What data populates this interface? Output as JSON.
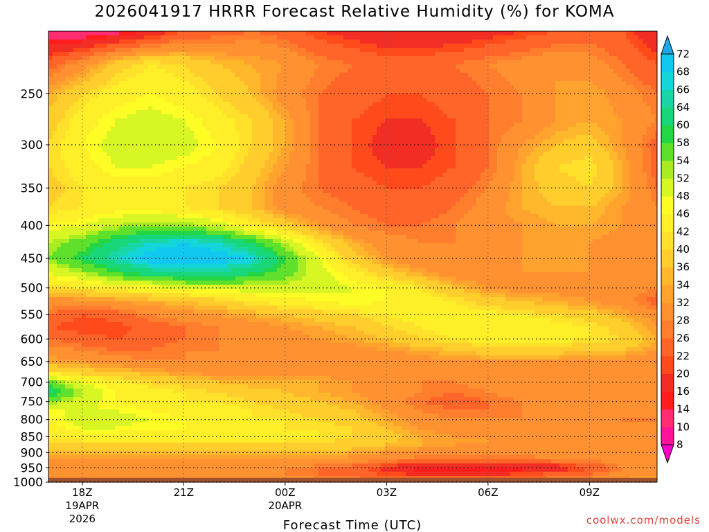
{
  "chart_data": {
    "type": "heatmap",
    "title": "2026041917 HRRR Forecast Relative Humidity (%) for KOMA",
    "xlabel": "Forecast Time (UTC)",
    "ylabel": "",
    "x_ticks": [
      {
        "hour": 18,
        "label": "18Z",
        "sub1": "19APR",
        "sub2": "2026"
      },
      {
        "hour": 21,
        "label": "21Z",
        "sub1": "",
        "sub2": ""
      },
      {
        "hour": 24,
        "label": "00Z",
        "sub1": "20APR",
        "sub2": ""
      },
      {
        "hour": 27,
        "label": "03Z",
        "sub1": "",
        "sub2": ""
      },
      {
        "hour": 30,
        "label": "06Z",
        "sub1": "",
        "sub2": ""
      },
      {
        "hour": 33,
        "label": "09Z",
        "sub1": "",
        "sub2": ""
      }
    ],
    "x_range_hours": [
      17,
      35
    ],
    "y_ticks_hpa": [
      250,
      300,
      350,
      400,
      450,
      500,
      550,
      600,
      650,
      700,
      750,
      800,
      850,
      900,
      950,
      1000
    ],
    "y_range_hpa": [
      200,
      1000
    ],
    "y_scale": "log",
    "grid": true,
    "colorbar_levels": [
      8,
      10,
      14,
      16,
      20,
      22,
      26,
      28,
      32,
      34,
      36,
      40,
      42,
      46,
      48,
      52,
      54,
      58,
      60,
      64,
      66,
      68,
      72
    ],
    "colorbar_colors": [
      "#ff00c8",
      "#ff1499",
      "#ff2c72",
      "#ff1c1c",
      "#f22d24",
      "#ff4a1c",
      "#ff6428",
      "#ff7e2e",
      "#ff9130",
      "#ffa22e",
      "#ffb82c",
      "#ffce2c",
      "#ffe02a",
      "#ffef28",
      "#fffc26",
      "#d8f524",
      "#a9ec22",
      "#5fe02a",
      "#22d646",
      "#18d67a",
      "#18d6a8",
      "#14d6da",
      "#10c8f0",
      "#1aa8e8"
    ],
    "hours": [
      17,
      18,
      19,
      20,
      21,
      22,
      23,
      24,
      25,
      26,
      27,
      28,
      29,
      30,
      31,
      32,
      33,
      34,
      35
    ],
    "levels_hpa": [
      200,
      225,
      250,
      275,
      300,
      325,
      350,
      375,
      400,
      425,
      450,
      475,
      500,
      525,
      550,
      575,
      600,
      625,
      650,
      675,
      700,
      725,
      750,
      775,
      800,
      825,
      850,
      875,
      900,
      925,
      950,
      975,
      1000
    ],
    "rh": [
      [
        10,
        10,
        12,
        16,
        22,
        24,
        26,
        24,
        20,
        18,
        16,
        16,
        16,
        18,
        20,
        22,
        24,
        22,
        16
      ],
      [
        24,
        30,
        38,
        42,
        40,
        36,
        34,
        32,
        28,
        26,
        24,
        24,
        26,
        28,
        30,
        32,
        30,
        26,
        22
      ],
      [
        34,
        40,
        44,
        46,
        44,
        40,
        36,
        30,
        26,
        24,
        22,
        22,
        24,
        26,
        28,
        32,
        34,
        30,
        26
      ],
      [
        38,
        44,
        48,
        50,
        48,
        44,
        40,
        34,
        26,
        22,
        20,
        20,
        22,
        26,
        28,
        32,
        34,
        32,
        28
      ],
      [
        40,
        46,
        50,
        52,
        50,
        46,
        40,
        34,
        26,
        22,
        18,
        18,
        22,
        26,
        32,
        36,
        38,
        32,
        24
      ],
      [
        40,
        44,
        48,
        48,
        46,
        44,
        38,
        32,
        26,
        22,
        20,
        20,
        22,
        26,
        34,
        40,
        42,
        34,
        24
      ],
      [
        38,
        42,
        44,
        44,
        42,
        40,
        36,
        30,
        26,
        24,
        22,
        22,
        24,
        28,
        34,
        38,
        40,
        34,
        26
      ],
      [
        40,
        42,
        44,
        44,
        42,
        40,
        36,
        30,
        28,
        26,
        24,
        24,
        26,
        30,
        34,
        36,
        36,
        32,
        28
      ],
      [
        46,
        48,
        52,
        54,
        54,
        50,
        44,
        38,
        32,
        28,
        26,
        26,
        28,
        30,
        32,
        34,
        34,
        32,
        30
      ],
      [
        52,
        56,
        62,
        66,
        68,
        66,
        60,
        52,
        42,
        34,
        30,
        28,
        28,
        30,
        32,
        32,
        32,
        30,
        30
      ],
      [
        54,
        60,
        66,
        70,
        70,
        70,
        68,
        58,
        48,
        38,
        32,
        28,
        28,
        30,
        32,
        32,
        32,
        30,
        28
      ],
      [
        48,
        52,
        58,
        62,
        64,
        64,
        60,
        56,
        50,
        44,
        38,
        34,
        30,
        30,
        32,
        32,
        32,
        30,
        28
      ],
      [
        40,
        42,
        44,
        46,
        48,
        50,
        50,
        50,
        50,
        48,
        46,
        42,
        36,
        32,
        30,
        30,
        30,
        30,
        28
      ],
      [
        30,
        30,
        32,
        34,
        36,
        38,
        42,
        44,
        46,
        48,
        46,
        44,
        42,
        38,
        36,
        34,
        32,
        30,
        24
      ],
      [
        26,
        22,
        24,
        28,
        30,
        32,
        34,
        36,
        38,
        40,
        42,
        44,
        44,
        44,
        42,
        40,
        38,
        34,
        30
      ],
      [
        22,
        20,
        20,
        24,
        26,
        28,
        30,
        32,
        34,
        36,
        40,
        42,
        44,
        46,
        46,
        44,
        42,
        38,
        32
      ],
      [
        26,
        24,
        22,
        24,
        26,
        28,
        30,
        30,
        32,
        34,
        36,
        40,
        42,
        44,
        44,
        44,
        42,
        40,
        34
      ],
      [
        30,
        28,
        26,
        26,
        28,
        28,
        28,
        28,
        28,
        30,
        32,
        34,
        36,
        38,
        38,
        38,
        36,
        36,
        32
      ],
      [
        34,
        32,
        30,
        28,
        28,
        28,
        28,
        28,
        28,
        28,
        28,
        30,
        32,
        32,
        32,
        32,
        30,
        30,
        28
      ],
      [
        40,
        38,
        36,
        34,
        32,
        30,
        30,
        30,
        30,
        30,
        28,
        28,
        30,
        30,
        30,
        30,
        30,
        28,
        28
      ],
      [
        56,
        48,
        44,
        40,
        38,
        36,
        34,
        34,
        34,
        32,
        30,
        28,
        28,
        30,
        30,
        30,
        30,
        28,
        28
      ],
      [
        62,
        52,
        46,
        44,
        42,
        40,
        38,
        36,
        34,
        32,
        30,
        28,
        26,
        28,
        30,
        30,
        30,
        28,
        28
      ],
      [
        54,
        50,
        46,
        44,
        42,
        42,
        40,
        38,
        36,
        34,
        30,
        26,
        24,
        26,
        28,
        30,
        30,
        28,
        28
      ],
      [
        48,
        48,
        48,
        46,
        44,
        44,
        42,
        40,
        38,
        36,
        32,
        28,
        26,
        26,
        28,
        28,
        28,
        28,
        28
      ],
      [
        46,
        50,
        50,
        48,
        46,
        44,
        42,
        42,
        40,
        38,
        34,
        30,
        28,
        28,
        28,
        28,
        28,
        28,
        28
      ],
      [
        44,
        48,
        48,
        46,
        46,
        44,
        44,
        42,
        42,
        40,
        36,
        32,
        30,
        30,
        30,
        30,
        30,
        28,
        28
      ],
      [
        42,
        44,
        44,
        44,
        44,
        44,
        44,
        44,
        42,
        40,
        38,
        34,
        32,
        32,
        30,
        30,
        30,
        30,
        28
      ],
      [
        40,
        40,
        40,
        40,
        40,
        40,
        40,
        40,
        40,
        38,
        36,
        34,
        32,
        32,
        32,
        32,
        30,
        30,
        28
      ],
      [
        36,
        36,
        36,
        36,
        36,
        36,
        36,
        36,
        36,
        34,
        32,
        30,
        30,
        30,
        30,
        30,
        30,
        30,
        28
      ],
      [
        32,
        32,
        32,
        32,
        32,
        32,
        32,
        32,
        32,
        30,
        28,
        26,
        26,
        26,
        26,
        28,
        28,
        30,
        30
      ],
      [
        28,
        28,
        28,
        28,
        28,
        28,
        28,
        28,
        26,
        24,
        18,
        14,
        12,
        12,
        14,
        16,
        22,
        28,
        30
      ],
      [
        30,
        30,
        30,
        30,
        30,
        30,
        30,
        28,
        26,
        24,
        22,
        20,
        20,
        20,
        22,
        24,
        26,
        30,
        32
      ],
      [
        34,
        34,
        34,
        34,
        34,
        34,
        34,
        32,
        30,
        30,
        28,
        28,
        28,
        28,
        28,
        30,
        30,
        34,
        36
      ]
    ]
  },
  "credit": "coolwx.com/models",
  "colors": {
    "terrain": "#a0522d",
    "grid": "#606060"
  }
}
